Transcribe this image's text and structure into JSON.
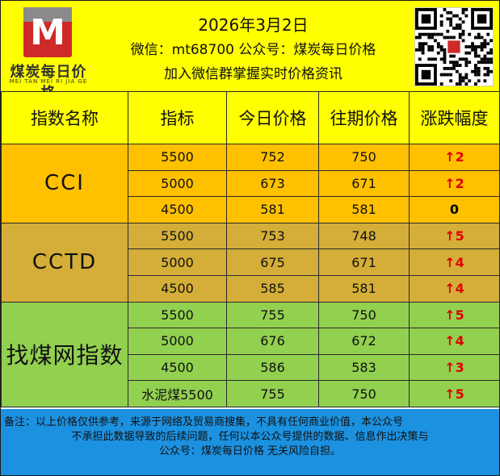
{
  "header": {
    "logo_text": "煤炭每日价格",
    "logo_sub": "MEI TAN MEI RI JIA GE",
    "logo_mark": "M",
    "date": "2026年3月2日",
    "wechat_line": "微信：mt68700  公众号：煤炭每日价格",
    "join_line": "加入微信群掌握实时价格资讯"
  },
  "table": {
    "columns": [
      "指数名称",
      "指标",
      "今日价格",
      "往期价格",
      "涨跌幅度"
    ],
    "groups": [
      {
        "name": "CCI",
        "color": "#ffc000",
        "rows": [
          {
            "spec": "5500",
            "today": "752",
            "prev": "750",
            "change": "2",
            "dir": "up"
          },
          {
            "spec": "5000",
            "today": "673",
            "prev": "671",
            "change": "2",
            "dir": "up"
          },
          {
            "spec": "4500",
            "today": "581",
            "prev": "581",
            "change": "0",
            "dir": "flat"
          }
        ]
      },
      {
        "name": "CCTD",
        "color": "#d4ae38",
        "rows": [
          {
            "spec": "5500",
            "today": "753",
            "prev": "748",
            "change": "5",
            "dir": "up"
          },
          {
            "spec": "5000",
            "today": "675",
            "prev": "671",
            "change": "4",
            "dir": "up"
          },
          {
            "spec": "4500",
            "today": "585",
            "prev": "581",
            "change": "4",
            "dir": "up"
          }
        ]
      },
      {
        "name": "找煤网指数",
        "color": "#92d050",
        "rows": [
          {
            "spec": "5500",
            "today": "755",
            "prev": "750",
            "change": "5",
            "dir": "up"
          },
          {
            "spec": "5000",
            "today": "676",
            "prev": "672",
            "change": "4",
            "dir": "up"
          },
          {
            "spec": "4500",
            "today": "586",
            "prev": "583",
            "change": "3",
            "dir": "up"
          },
          {
            "spec": "水泥煤5500",
            "today": "755",
            "prev": "750",
            "change": "5",
            "dir": "up"
          }
        ]
      }
    ]
  },
  "footer": {
    "line1": "备注：以上价格仅供参考，来源于网络及贸易商搜集，不具有任何商业价值，本公众号",
    "line2": "不承担此数据导致的后续问题，任何以本公众号提供的数据、信息作出决策与",
    "line3": "公众号：煤炭每日价格   无关风险自担。"
  },
  "colors": {
    "header_bg": "#ffff00",
    "footer_bg": "#1c91e0",
    "up": "#e00000"
  },
  "icons": {
    "up": "up-arrow-icon",
    "qr": "qr-code-icon"
  }
}
